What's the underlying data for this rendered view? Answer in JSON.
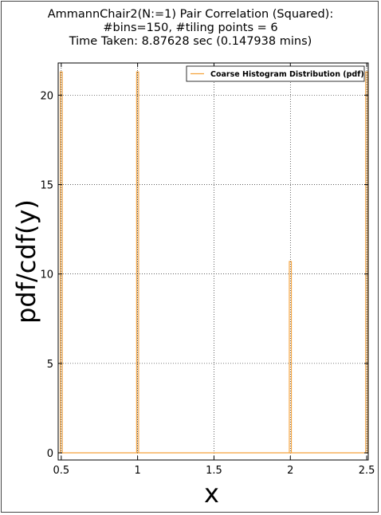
{
  "chart_data": {
    "type": "bar",
    "title_lines": [
      "AmmannChair2(N:=1) Pair Correlation (Squared):",
      "#bins=150, #tiling points = 6",
      "Time Taken: 8.87628 sec (0.147938 mins)"
    ],
    "xlabel": "x",
    "ylabel": "pdf/cdf(y)",
    "xlim": [
      0.48,
      2.51
    ],
    "ylim": [
      -0.4,
      21.8
    ],
    "xticks": [
      0.5,
      1,
      1.5,
      2,
      2.5
    ],
    "xtick_labels": [
      "0.5",
      "1",
      "1.5",
      "2",
      "2.5"
    ],
    "yticks": [
      0,
      5,
      10,
      15,
      20
    ],
    "ytick_labels": [
      "0",
      "5",
      "10",
      "15",
      "20"
    ],
    "grid": true,
    "legend_position": "top-right",
    "series": [
      {
        "name": "Coarse Histogram Distribution (pdf)",
        "color": "#f5a23a",
        "bars": [
          {
            "x": 0.5,
            "value": 21.3
          },
          {
            "x": 1.0,
            "value": 21.3
          },
          {
            "x": 2.0,
            "value": 10.7
          },
          {
            "x": 2.5,
            "value": 21.3
          }
        ]
      }
    ]
  }
}
